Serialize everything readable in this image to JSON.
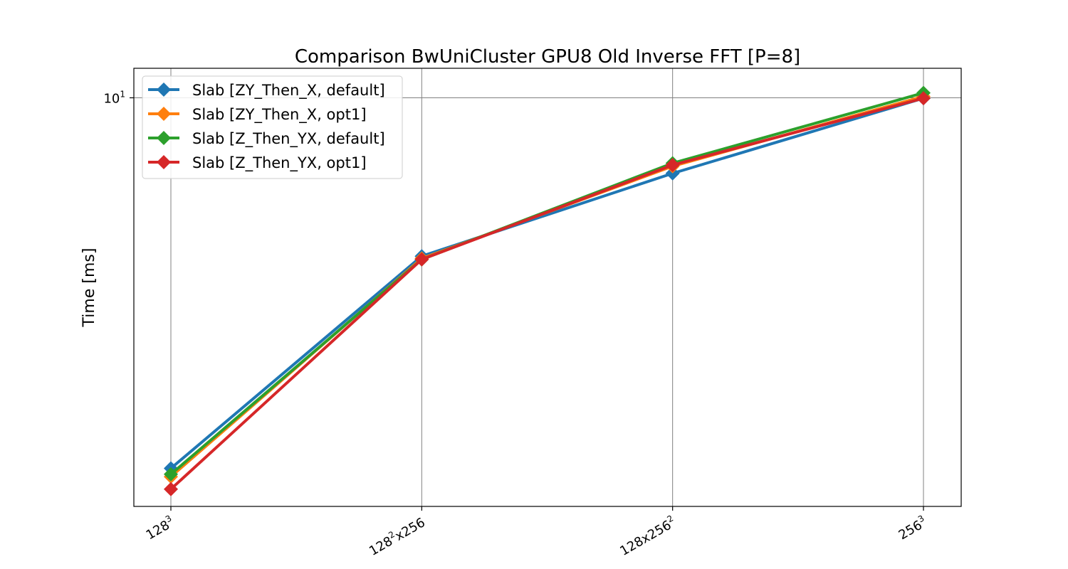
{
  "chart_data": {
    "type": "line",
    "title": "Comparison BwUniCluster GPU8 Old Inverse FFT [P=8]",
    "xlabel": "",
    "ylabel": "Time [ms]",
    "yscale": "log",
    "ylim": [
      1.63,
      11.4
    ],
    "x_ticks": [
      {
        "base": "128",
        "sup": "3",
        "rest": ""
      },
      {
        "base": "128",
        "sup": "2",
        "rest": "x256"
      },
      {
        "base": "128x256",
        "sup": "2",
        "rest": ""
      },
      {
        "base": "256",
        "sup": "3",
        "rest": ""
      }
    ],
    "y_ticks": [
      {
        "value": 10,
        "base": "10",
        "sup": "1"
      }
    ],
    "grid": true,
    "legend_position": "top-left",
    "series": [
      {
        "name": "Slab [ZY_Then_X, default]",
        "color": "#1f77b4",
        "values": [
          1.93,
          4.95,
          7.15,
          9.98
        ]
      },
      {
        "name": "Slab [ZY_Then_X, opt1]",
        "color": "#ff7f0e",
        "values": [
          1.86,
          4.9,
          7.38,
          10.06
        ]
      },
      {
        "name": "Slab [Z_Then_YX, default]",
        "color": "#2ca02c",
        "values": [
          1.88,
          4.88,
          7.48,
          10.22
        ]
      },
      {
        "name": "Slab [Z_Then_YX, opt1]",
        "color": "#d62728",
        "values": [
          1.76,
          4.88,
          7.42,
          9.98
        ]
      }
    ]
  }
}
